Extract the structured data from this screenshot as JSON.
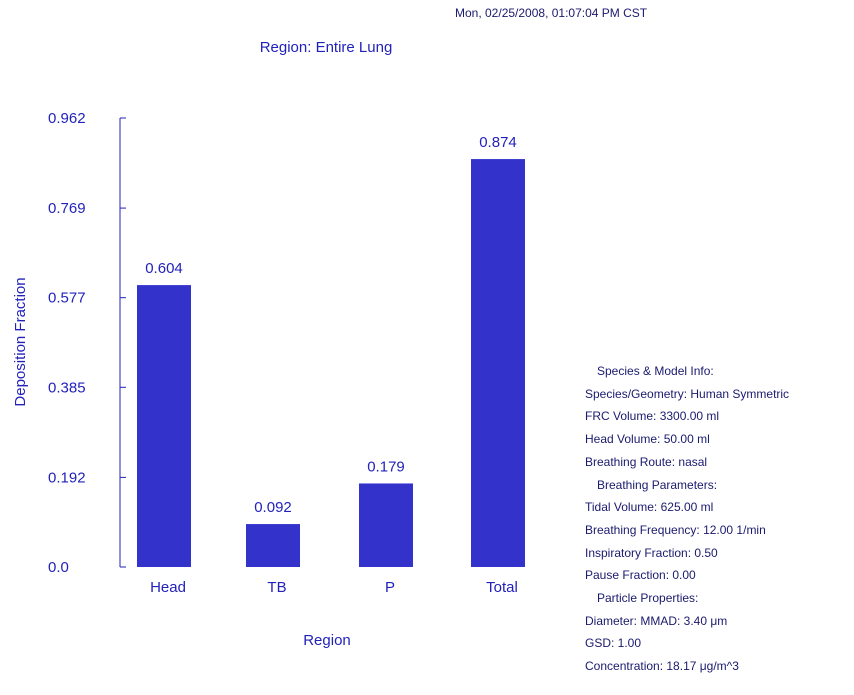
{
  "timestamp": "Mon, 02/25/2008, 01:07:04 PM CST",
  "colors": {
    "bar": "#3333cc",
    "axis": "#2222bb",
    "text": "#1a1a6e"
  },
  "chart_data": {
    "type": "bar",
    "title": "Region: Entire Lung",
    "xlabel": "Region",
    "ylabel": "Deposition Fraction",
    "categories": [
      "Head",
      "TB",
      "P",
      "Total"
    ],
    "values": [
      0.604,
      0.092,
      0.179,
      0.874
    ],
    "data_labels": [
      "0.604",
      "0.092",
      "0.179",
      "0.874"
    ],
    "yticks": [
      "0.0",
      "0.192",
      "0.385",
      "0.577",
      "0.769",
      "0.962"
    ],
    "ylim": [
      0,
      0.962
    ],
    "grid": false,
    "legend": "none"
  },
  "info": {
    "species_header": "Species & Model Info:",
    "species_geometry": "Species/Geometry: Human Symmetric",
    "frc_volume": "FRC Volume: 3300.00 ml",
    "head_volume": "Head Volume: 50.00 ml",
    "breathing_route": "Breathing Route: nasal",
    "breathing_header": "Breathing Parameters:",
    "tidal_volume": "Tidal Volume: 625.00 ml",
    "breathing_frequency": "Breathing Frequency: 12.00 1/min",
    "inspiratory_fraction": "Inspiratory Fraction: 0.50",
    "pause_fraction": "Pause Fraction: 0.00",
    "particle_header": "Particle Properties:",
    "diameter": "Diameter: MMAD: 3.40 μm",
    "gsd": "GSD: 1.00",
    "concentration": "Concentration: 18.17 μg/m^3"
  }
}
